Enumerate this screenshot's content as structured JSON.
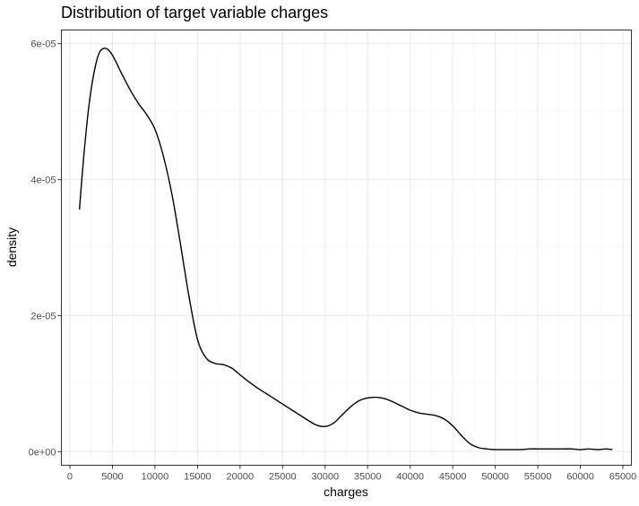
{
  "chart_data": {
    "type": "line",
    "title": "Distribution of target variable charges",
    "xlabel": "charges",
    "ylabel": "density",
    "xlim": [
      -1000,
      66000
    ],
    "ylim": [
      -2e-06,
      6.2e-05
    ],
    "grid": true,
    "legend": "none",
    "line_color": "#000000",
    "x_ticks": [
      0,
      5000,
      10000,
      15000,
      20000,
      25000,
      30000,
      35000,
      40000,
      45000,
      50000,
      55000,
      60000,
      65000
    ],
    "x_tick_labels": [
      "0",
      "5000",
      "10000",
      "15000",
      "20000",
      "25000",
      "30000",
      "35000",
      "40000",
      "45000",
      "50000",
      "55000",
      "60000",
      "65000"
    ],
    "y_ticks": [
      0,
      2e-05,
      4e-05,
      6e-05
    ],
    "y_tick_labels": [
      "0e+00",
      "2e-05",
      "4e-05",
      "6e-05"
    ],
    "x": [
      1122,
      1600,
      2200,
      2800,
      3400,
      4000,
      4500,
      5000,
      5500,
      6000,
      7000,
      8000,
      9000,
      10000,
      11000,
      12000,
      13000,
      14000,
      15000,
      16000,
      17000,
      18000,
      19000,
      20000,
      21000,
      22000,
      23000,
      24000,
      25000,
      26000,
      27000,
      28000,
      29000,
      30000,
      31000,
      32000,
      33000,
      34000,
      35000,
      36000,
      37000,
      38000,
      39000,
      40000,
      41000,
      42000,
      43000,
      44000,
      45000,
      46000,
      47000,
      48000,
      49000,
      50000,
      51000,
      52000,
      53000,
      54000,
      55000,
      56000,
      57000,
      58000,
      59000,
      60000,
      61000,
      62000,
      63000,
      63770
    ],
    "y": [
      3.56e-05,
      4.3e-05,
      5.05e-05,
      5.55e-05,
      5.85e-05,
      5.93e-05,
      5.91e-05,
      5.83e-05,
      5.71e-05,
      5.58e-05,
      5.34e-05,
      5.13e-05,
      4.96e-05,
      4.74e-05,
      4.34e-05,
      3.78e-05,
      3.05e-05,
      2.28e-05,
      1.65e-05,
      1.38e-05,
      1.3e-05,
      1.28e-05,
      1.23e-05,
      1.13e-05,
      1.03e-05,
      9.4e-06,
      8.6e-06,
      7.8e-06,
      7e-06,
      6.2e-06,
      5.4e-06,
      4.6e-06,
      3.9e-06,
      3.7e-06,
      4.2e-06,
      5.4e-06,
      6.6e-06,
      7.5e-06,
      7.9e-06,
      8e-06,
      7.8e-06,
      7.3e-06,
      6.7e-06,
      6.1e-06,
      5.7e-06,
      5.5e-06,
      5.3e-06,
      4.8e-06,
      3.8e-06,
      2.4e-06,
      1.2e-06,
      6e-07,
      4e-07,
      3e-07,
      3e-07,
      3e-07,
      3e-07,
      4e-07,
      4e-07,
      4e-07,
      4e-07,
      4e-07,
      4e-07,
      3e-07,
      4e-07,
      3e-07,
      4e-07,
      3e-07
    ]
  }
}
